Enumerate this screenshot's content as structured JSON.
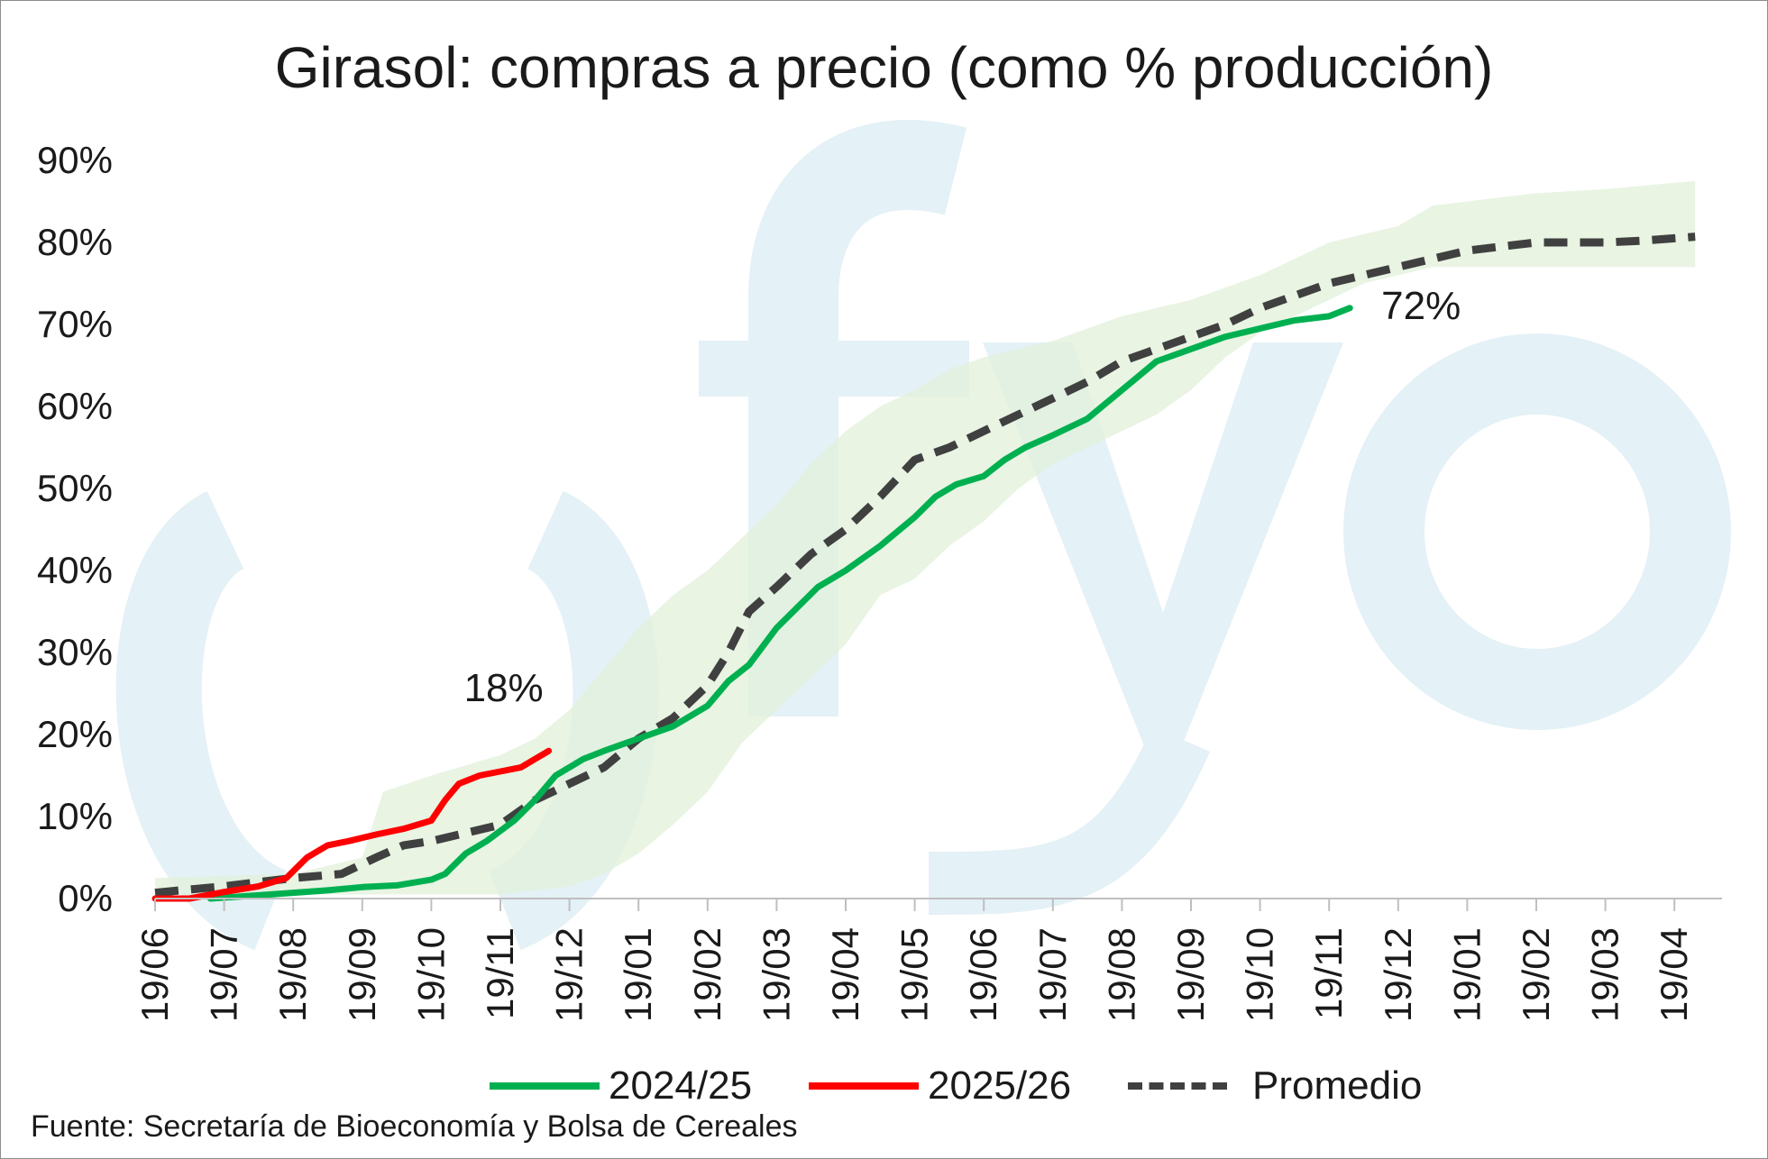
{
  "chart_data": {
    "type": "line",
    "title": "Girasol: compras a precio (como % producción)",
    "xlabel": "",
    "ylabel": "",
    "ylim": [
      0,
      90
    ],
    "ytick_labels": [
      "0%",
      "10%",
      "20%",
      "30%",
      "40%",
      "50%",
      "60%",
      "70%",
      "80%",
      "90%"
    ],
    "xtick_labels": [
      "19/06",
      "19/07",
      "19/08",
      "19/09",
      "19/10",
      "19/11",
      "19/12",
      "19/01",
      "19/02",
      "19/03",
      "19/04",
      "19/05",
      "19/06",
      "19/07",
      "19/08",
      "19/09",
      "19/10",
      "19/11",
      "19/12",
      "19/01",
      "19/02",
      "19/03",
      "19/04"
    ],
    "x_unit": "months since 19/06",
    "grid": false,
    "legend_position": "bottom",
    "series": [
      {
        "name": "2024/25",
        "color": "#00b050",
        "style": "solid",
        "points": [
          [
            0.8,
            0
          ],
          [
            1.5,
            0.4
          ],
          [
            2.5,
            1.0
          ],
          [
            3.0,
            1.4
          ],
          [
            3.5,
            1.6
          ],
          [
            4.0,
            2.3
          ],
          [
            4.2,
            3.0
          ],
          [
            4.5,
            5.5
          ],
          [
            4.8,
            7.0
          ],
          [
            5.2,
            9.5
          ],
          [
            5.5,
            12.0
          ],
          [
            5.8,
            15.0
          ],
          [
            6.2,
            17.0
          ],
          [
            6.5,
            18.0
          ],
          [
            7.0,
            19.5
          ],
          [
            7.5,
            21.0
          ],
          [
            8.0,
            23.5
          ],
          [
            8.3,
            26.5
          ],
          [
            8.6,
            28.5
          ],
          [
            9.0,
            33.0
          ],
          [
            9.3,
            35.5
          ],
          [
            9.6,
            38.0
          ],
          [
            10.0,
            40.0
          ],
          [
            10.5,
            43.0
          ],
          [
            11.0,
            46.5
          ],
          [
            11.3,
            49.0
          ],
          [
            11.6,
            50.5
          ],
          [
            12.0,
            51.5
          ],
          [
            12.3,
            53.5
          ],
          [
            12.6,
            55.0
          ],
          [
            13.0,
            56.5
          ],
          [
            13.5,
            58.5
          ],
          [
            14.0,
            62.0
          ],
          [
            14.5,
            65.5
          ],
          [
            15.0,
            67.0
          ],
          [
            15.5,
            68.5
          ],
          [
            16.0,
            69.5
          ],
          [
            16.5,
            70.5
          ],
          [
            17.0,
            71.0
          ],
          [
            17.3,
            72.0
          ]
        ]
      },
      {
        "name": "2025/26",
        "color": "#ff0000",
        "style": "solid",
        "points": [
          [
            0.0,
            0.0
          ],
          [
            0.5,
            0.0
          ],
          [
            1.0,
            0.8
          ],
          [
            1.5,
            1.5
          ],
          [
            1.9,
            2.5
          ],
          [
            2.2,
            5.0
          ],
          [
            2.5,
            6.5
          ],
          [
            2.8,
            7.0
          ],
          [
            3.2,
            7.8
          ],
          [
            3.6,
            8.5
          ],
          [
            4.0,
            9.5
          ],
          [
            4.2,
            12.0
          ],
          [
            4.4,
            14.0
          ],
          [
            4.7,
            15.0
          ],
          [
            5.0,
            15.5
          ],
          [
            5.3,
            16.0
          ],
          [
            5.5,
            17.0
          ],
          [
            5.7,
            18.0
          ]
        ]
      },
      {
        "name": "Promedio",
        "color": "#404040",
        "style": "dashed",
        "points": [
          [
            0.0,
            0.7
          ],
          [
            1.0,
            1.5
          ],
          [
            1.5,
            2.0
          ],
          [
            2.0,
            2.5
          ],
          [
            2.7,
            3.0
          ],
          [
            3.2,
            5.0
          ],
          [
            3.6,
            6.5
          ],
          [
            4.0,
            7.0
          ],
          [
            4.5,
            8.0
          ],
          [
            5.0,
            9.0
          ],
          [
            5.5,
            12.0
          ],
          [
            6.0,
            14.0
          ],
          [
            6.5,
            16.0
          ],
          [
            7.0,
            19.5
          ],
          [
            7.5,
            22.0
          ],
          [
            8.0,
            26.0
          ],
          [
            8.3,
            30.0
          ],
          [
            8.6,
            35.0
          ],
          [
            9.0,
            38.0
          ],
          [
            9.5,
            42.0
          ],
          [
            10.0,
            45.0
          ],
          [
            10.5,
            49.0
          ],
          [
            11.0,
            53.5
          ],
          [
            11.5,
            55.0
          ],
          [
            12.0,
            57.0
          ],
          [
            12.5,
            59.0
          ],
          [
            13.0,
            61.0
          ],
          [
            13.5,
            63.0
          ],
          [
            14.0,
            65.5
          ],
          [
            14.5,
            67.0
          ],
          [
            15.0,
            68.5
          ],
          [
            15.5,
            70.0
          ],
          [
            16.0,
            72.0
          ],
          [
            16.5,
            73.5
          ],
          [
            17.0,
            75.0
          ],
          [
            17.5,
            76.0
          ],
          [
            18.0,
            77.0
          ],
          [
            18.5,
            78.0
          ],
          [
            19.0,
            79.0
          ],
          [
            19.5,
            79.5
          ],
          [
            20.0,
            80.0
          ],
          [
            20.5,
            80.0
          ],
          [
            21.0,
            80.0
          ],
          [
            21.5,
            80.2
          ],
          [
            22.0,
            80.5
          ],
          [
            22.3,
            80.7
          ]
        ]
      }
    ],
    "range_band": {
      "color": "#e2f0d9",
      "lower": [
        [
          0.0,
          0.5
        ],
        [
          2.0,
          0.5
        ],
        [
          4.0,
          0.5
        ],
        [
          5.0,
          0.5
        ],
        [
          5.5,
          1.0
        ],
        [
          6.0,
          1.5
        ],
        [
          6.5,
          3.0
        ],
        [
          7.0,
          5.5
        ],
        [
          7.5,
          9.0
        ],
        [
          8.0,
          13.0
        ],
        [
          8.5,
          19.0
        ],
        [
          9.0,
          23.0
        ],
        [
          9.5,
          27.0
        ],
        [
          10.0,
          31.0
        ],
        [
          10.5,
          37.0
        ],
        [
          11.0,
          39.0
        ],
        [
          11.5,
          43.0
        ],
        [
          12.0,
          46.0
        ],
        [
          12.5,
          50.0
        ],
        [
          13.0,
          53.0
        ],
        [
          13.5,
          55.0
        ],
        [
          14.0,
          57.0
        ],
        [
          14.5,
          59.0
        ],
        [
          15.0,
          62.0
        ],
        [
          15.5,
          66.0
        ],
        [
          16.0,
          69.0
        ],
        [
          16.5,
          71.0
        ],
        [
          17.0,
          73.0
        ],
        [
          17.5,
          75.0
        ],
        [
          18.0,
          76.0
        ],
        [
          18.5,
          77.0
        ],
        [
          19.0,
          77.0
        ],
        [
          20.0,
          77.0
        ],
        [
          21.0,
          77.0
        ],
        [
          22.3,
          77.0
        ]
      ],
      "upper": [
        [
          0.0,
          2.5
        ],
        [
          2.0,
          3.0
        ],
        [
          3.0,
          5.0
        ],
        [
          3.3,
          13.0
        ],
        [
          4.0,
          15.0
        ],
        [
          5.0,
          17.5
        ],
        [
          5.5,
          19.5
        ],
        [
          6.0,
          23.0
        ],
        [
          6.5,
          28.0
        ],
        [
          7.0,
          33.0
        ],
        [
          7.5,
          37.0
        ],
        [
          8.0,
          40.0
        ],
        [
          8.5,
          44.0
        ],
        [
          9.0,
          48.0
        ],
        [
          9.5,
          53.0
        ],
        [
          10.0,
          57.0
        ],
        [
          10.5,
          60.0
        ],
        [
          11.0,
          62.0
        ],
        [
          11.5,
          64.5
        ],
        [
          12.0,
          66.0
        ],
        [
          12.5,
          67.0
        ],
        [
          13.0,
          68.0
        ],
        [
          13.5,
          69.5
        ],
        [
          14.0,
          71.0
        ],
        [
          14.5,
          72.0
        ],
        [
          15.0,
          73.0
        ],
        [
          15.5,
          74.5
        ],
        [
          16.0,
          76.0
        ],
        [
          16.5,
          78.0
        ],
        [
          17.0,
          80.0
        ],
        [
          17.5,
          81.0
        ],
        [
          18.0,
          82.0
        ],
        [
          18.5,
          84.5
        ],
        [
          19.0,
          85.0
        ],
        [
          19.5,
          85.5
        ],
        [
          20.0,
          86.0
        ],
        [
          21.0,
          86.5
        ],
        [
          22.3,
          87.5
        ]
      ]
    },
    "annotations": [
      {
        "text": "18%",
        "series": "2025/26",
        "x": 5.7,
        "y": 18.0
      },
      {
        "text": "72%",
        "series": "2024/25",
        "x": 17.3,
        "y": 72.0
      }
    ]
  },
  "source_note": "Fuente: Secretaría de Bioeconomía y Bolsa de Cereales",
  "watermark": {
    "text": "fyo",
    "color": "#e4f1f6"
  }
}
